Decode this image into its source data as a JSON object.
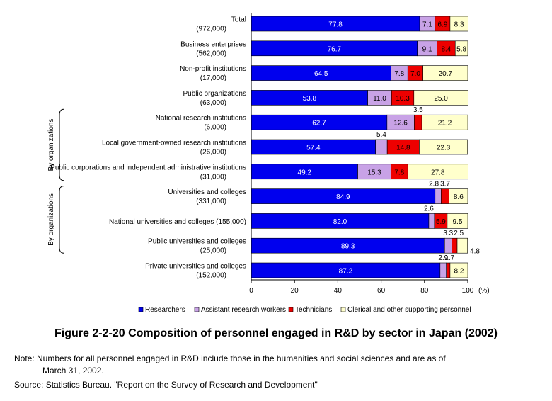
{
  "chart_data": {
    "type": "bar",
    "orientation": "horizontal",
    "stacked": true,
    "xlim": [
      0,
      100
    ],
    "x_ticks": [
      "0",
      "20",
      "40",
      "60",
      "80",
      "100"
    ],
    "x_unit": "(%)",
    "categories": [
      {
        "name": "Total",
        "count": "(972,000)"
      },
      {
        "name": "Business enterprises",
        "count": "(562,000)"
      },
      {
        "name": "Non-profit institutions",
        "count": "(17,000)"
      },
      {
        "name": "Public organizations",
        "count": "(63,000)"
      },
      {
        "name": "National research institutions",
        "count": "(6,000)"
      },
      {
        "name": "Local government-owned research institutions",
        "count": "(26,000)"
      },
      {
        "name": "Public corporations and independent administrative institutions",
        "count": "(31,000)"
      },
      {
        "name": "Universities and colleges",
        "count": "(331,000)"
      },
      {
        "name": "National universities and colleges (155,000)",
        "count": ""
      },
      {
        "name": "Public universities and colleges",
        "count": "(25,000)"
      },
      {
        "name": "Private universities and colleges",
        "count": "(152,000)"
      }
    ],
    "series": [
      {
        "name": "Researchers",
        "color": "#0000ee",
        "values": [
          77.8,
          76.7,
          64.5,
          53.8,
          62.7,
          57.4,
          49.2,
          84.9,
          82.0,
          89.3,
          87.2
        ],
        "labels": [
          "77.8",
          "76.7",
          "64.5",
          "53.8",
          "62.7",
          "57.4",
          "49.2",
          "84.9",
          "82.0",
          "89.3",
          "87.2"
        ]
      },
      {
        "name": "Assistant research workers",
        "color": "#c8a2e6",
        "values": [
          7.1,
          9.1,
          7.8,
          11.0,
          12.6,
          5.4,
          15.3,
          2.8,
          2.6,
          3.3,
          2.9
        ],
        "labels": [
          "7.1",
          "9.1",
          "7.8",
          "11.0",
          "12.6",
          "5.4",
          "15.3",
          "2.8",
          "2.6",
          "3.3",
          "2.9"
        ]
      },
      {
        "name": "Technicians",
        "color": "#ee0000",
        "values": [
          6.9,
          8.4,
          7.0,
          10.3,
          3.5,
          14.8,
          7.8,
          3.7,
          5.9,
          2.5,
          1.7
        ],
        "labels": [
          "6.9",
          "8.4",
          "7.0",
          "10.3",
          "3.5",
          "14.8",
          "7.8",
          "3.7",
          "5.9",
          "2.5",
          "1.7"
        ]
      },
      {
        "name": "Clerical and other supporting personnel",
        "color": "#ffffcc",
        "values": [
          8.3,
          5.8,
          20.7,
          25.0,
          21.2,
          22.3,
          27.8,
          8.6,
          9.5,
          4.8,
          8.2
        ],
        "labels": [
          "8.3",
          "5.8",
          "20.7",
          "25.0",
          "21.2",
          "22.3",
          "27.8",
          "8.6",
          "9.5",
          "4.8",
          "8.2"
        ]
      }
    ],
    "group_labels": [
      "By organizations",
      "By organizations"
    ],
    "legend_position": "bottom"
  },
  "caption": "Figure 2-2-20    Composition of personnel engaged in R&D by sector in Japan (2002)",
  "note_line1": "Note: Numbers for all personnel engaged in R&D include those in the humanities and social sciences and are as of",
  "note_line2": "March 31, 2002.",
  "source": "Source: Statistics Bureau. \"Report on the Survey of Research and Development\""
}
